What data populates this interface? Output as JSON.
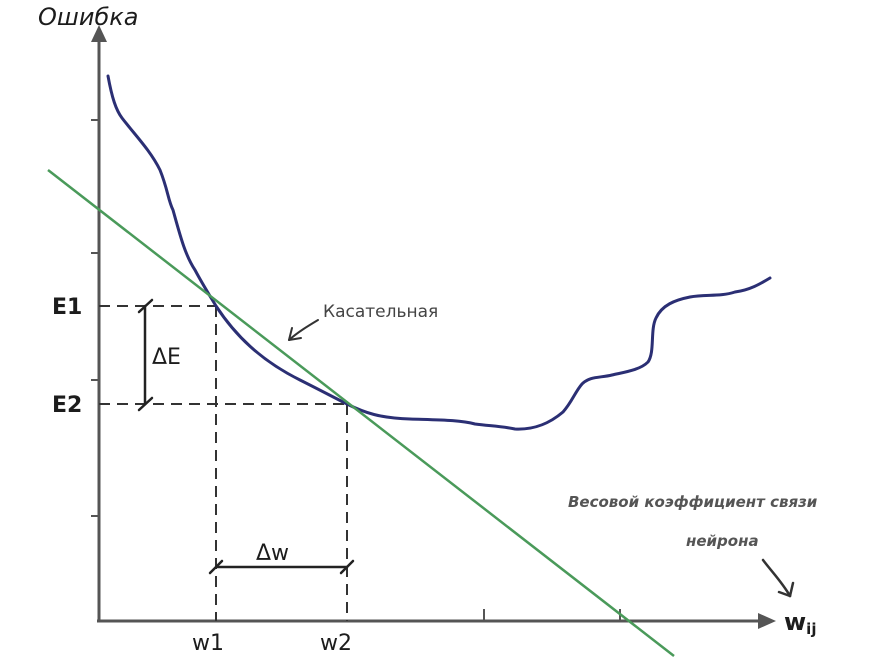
{
  "labels": {
    "y_axis": "Ошибка",
    "e1": "E1",
    "e2": "E2",
    "delta_e": "ΔE",
    "w1": "w1",
    "w2": "w2",
    "delta_w": "Δw",
    "tangent": "Касательная",
    "weight_note_line1": "Весовой коэффициент связи",
    "weight_note_line2": "нейрона",
    "x_axis_main": "w",
    "x_axis_sub": "ij"
  },
  "colors": {
    "axis": "#555555",
    "curve": "#2b2f74",
    "tangent": "#4a9a5a",
    "dash": "#333333"
  }
}
